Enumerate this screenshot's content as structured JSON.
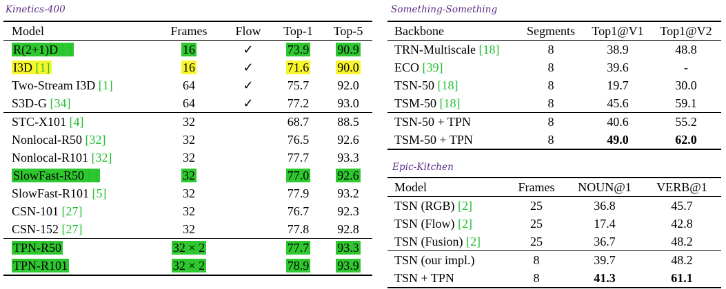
{
  "kinetics": {
    "title": "Kinetics-400",
    "headers": [
      "Model",
      "Frames",
      "Flow",
      "Top-1",
      "Top-5"
    ],
    "rows": [
      {
        "model": "R(2+1)D",
        "ref": "[    ]",
        "frames": "16",
        "flow": "✓",
        "top1": "73.9",
        "top5": "90.9",
        "highlight": "green"
      },
      {
        "model": "I3D",
        "ref": "[1]",
        "frames": "16",
        "flow": "✓",
        "top1": "71.6",
        "top5": "90.0",
        "highlight": "yellow"
      },
      {
        "model": "Two-Stream I3D",
        "ref": "[1]",
        "frames": "64",
        "flow": "✓",
        "top1": "75.7",
        "top5": "92.0",
        "highlight": ""
      },
      {
        "model": "S3D-G",
        "ref": "[34]",
        "frames": "64",
        "flow": "✓",
        "top1": "77.2",
        "top5": "93.0",
        "highlight": ""
      },
      {
        "model": "STC-X101",
        "ref": "[4]",
        "frames": "32",
        "flow": "",
        "top1": "68.7",
        "top5": "88.5",
        "highlight": "",
        "rule": true
      },
      {
        "model": "Nonlocal-R50",
        "ref": "[32]",
        "frames": "32",
        "flow": "",
        "top1": "76.5",
        "top5": "92.6",
        "highlight": ""
      },
      {
        "model": "Nonlocal-R101",
        "ref": "[32]",
        "frames": "32",
        "flow": "",
        "top1": "77.7",
        "top5": "93.3",
        "highlight": ""
      },
      {
        "model": "SlowFast-R50",
        "ref": "[  ]",
        "frames": "32",
        "flow": "",
        "top1": "77.0",
        "top5": "92.6",
        "highlight": "green"
      },
      {
        "model": "SlowFast-R101",
        "ref": "[5]",
        "frames": "32",
        "flow": "",
        "top1": "77.9",
        "top5": "93.2",
        "highlight": ""
      },
      {
        "model": "CSN-101",
        "ref": "[27]",
        "frames": "32",
        "flow": "",
        "top1": "76.7",
        "top5": "92.3",
        "highlight": ""
      },
      {
        "model": "CSN-152",
        "ref": "[27]",
        "frames": "32",
        "flow": "",
        "top1": "77.8",
        "top5": "92.8",
        "highlight": ""
      },
      {
        "model": "TPN-R50",
        "ref": "",
        "frames": "32 × 2",
        "flow": "",
        "top1": "77.7",
        "top5": "93.3",
        "highlight": "green",
        "rule": true,
        "bold": true
      },
      {
        "model": "TPN-R101",
        "ref": "",
        "frames": "32 × 2",
        "flow": "",
        "top1": "78.9",
        "top5": "93.9",
        "highlight": "green",
        "bold": true
      }
    ]
  },
  "something": {
    "title": "Something-Something",
    "headers": [
      "Backbone",
      "Segments",
      "Top1@V1",
      "Top1@V2"
    ],
    "rows": [
      {
        "model": "TRN-Multiscale",
        "ref": "[18]",
        "seg": "8",
        "v1": "38.9",
        "v2": "48.8"
      },
      {
        "model": "ECO",
        "ref": "[39]",
        "seg": "8",
        "v1": "39.6",
        "v2": "-"
      },
      {
        "model": "TSN-50",
        "ref": "[18]",
        "seg": "8",
        "v1": "19.7",
        "v2": "30.0"
      },
      {
        "model": "TSM-50",
        "ref": "[18]",
        "seg": "8",
        "v1": "45.6",
        "v2": "59.1"
      },
      {
        "model": "TSN-50 + TPN",
        "ref": "",
        "seg": "8",
        "v1": "40.6",
        "v2": "55.2",
        "rule": true
      },
      {
        "model": "TSM-50 + TPN",
        "ref": "",
        "seg": "8",
        "v1": "49.0",
        "v2": "62.0",
        "boldValues": true
      }
    ]
  },
  "epic": {
    "title": "Epic-Kitchen",
    "headers": [
      "Model",
      "Frames",
      "NOUN@1",
      "VERB@1"
    ],
    "rows": [
      {
        "model": "TSN (RGB)",
        "ref": "[2]",
        "frames": "25",
        "noun": "36.8",
        "verb": "45.7"
      },
      {
        "model": "TSN (Flow)",
        "ref": "[2]",
        "frames": "25",
        "noun": "17.4",
        "verb": "42.8"
      },
      {
        "model": "TSN (Fusion)",
        "ref": "[2]",
        "frames": "25",
        "noun": "36.7",
        "verb": "48.2"
      },
      {
        "model": "TSN (our impl.)",
        "ref": "",
        "frames": "8",
        "noun": "39.7",
        "verb": "48.2",
        "rule": true
      },
      {
        "model": "TSN + TPN",
        "ref": "",
        "frames": "8",
        "noun": "41.3",
        "verb": "61.1",
        "boldValues": true
      }
    ]
  }
}
